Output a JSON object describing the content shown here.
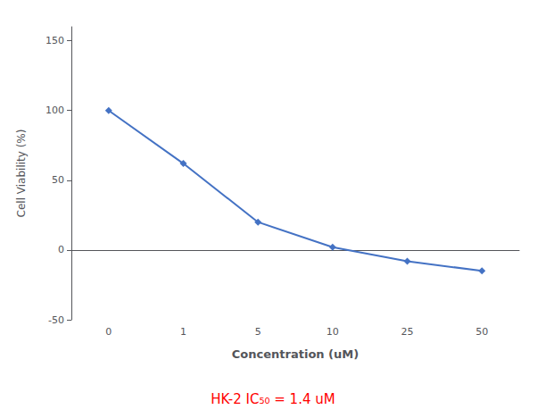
{
  "chart_data": {
    "type": "line",
    "categories": [
      "0",
      "1",
      "5",
      "10",
      "25",
      "50"
    ],
    "values": [
      100,
      62,
      20,
      2,
      -8,
      -15
    ],
    "x_label": "Concentration (uM)",
    "y_label": "Cell Viability (%)",
    "ylim": [
      -50,
      160
    ],
    "yticks": [
      -50,
      0,
      50,
      100,
      150
    ],
    "color": "#4472C4",
    "marker": "diamond",
    "grid": false,
    "annotations": [
      {
        "text": "HK-2 IC₅₀ = 1.4 uM",
        "color": "#FF0000"
      }
    ]
  }
}
